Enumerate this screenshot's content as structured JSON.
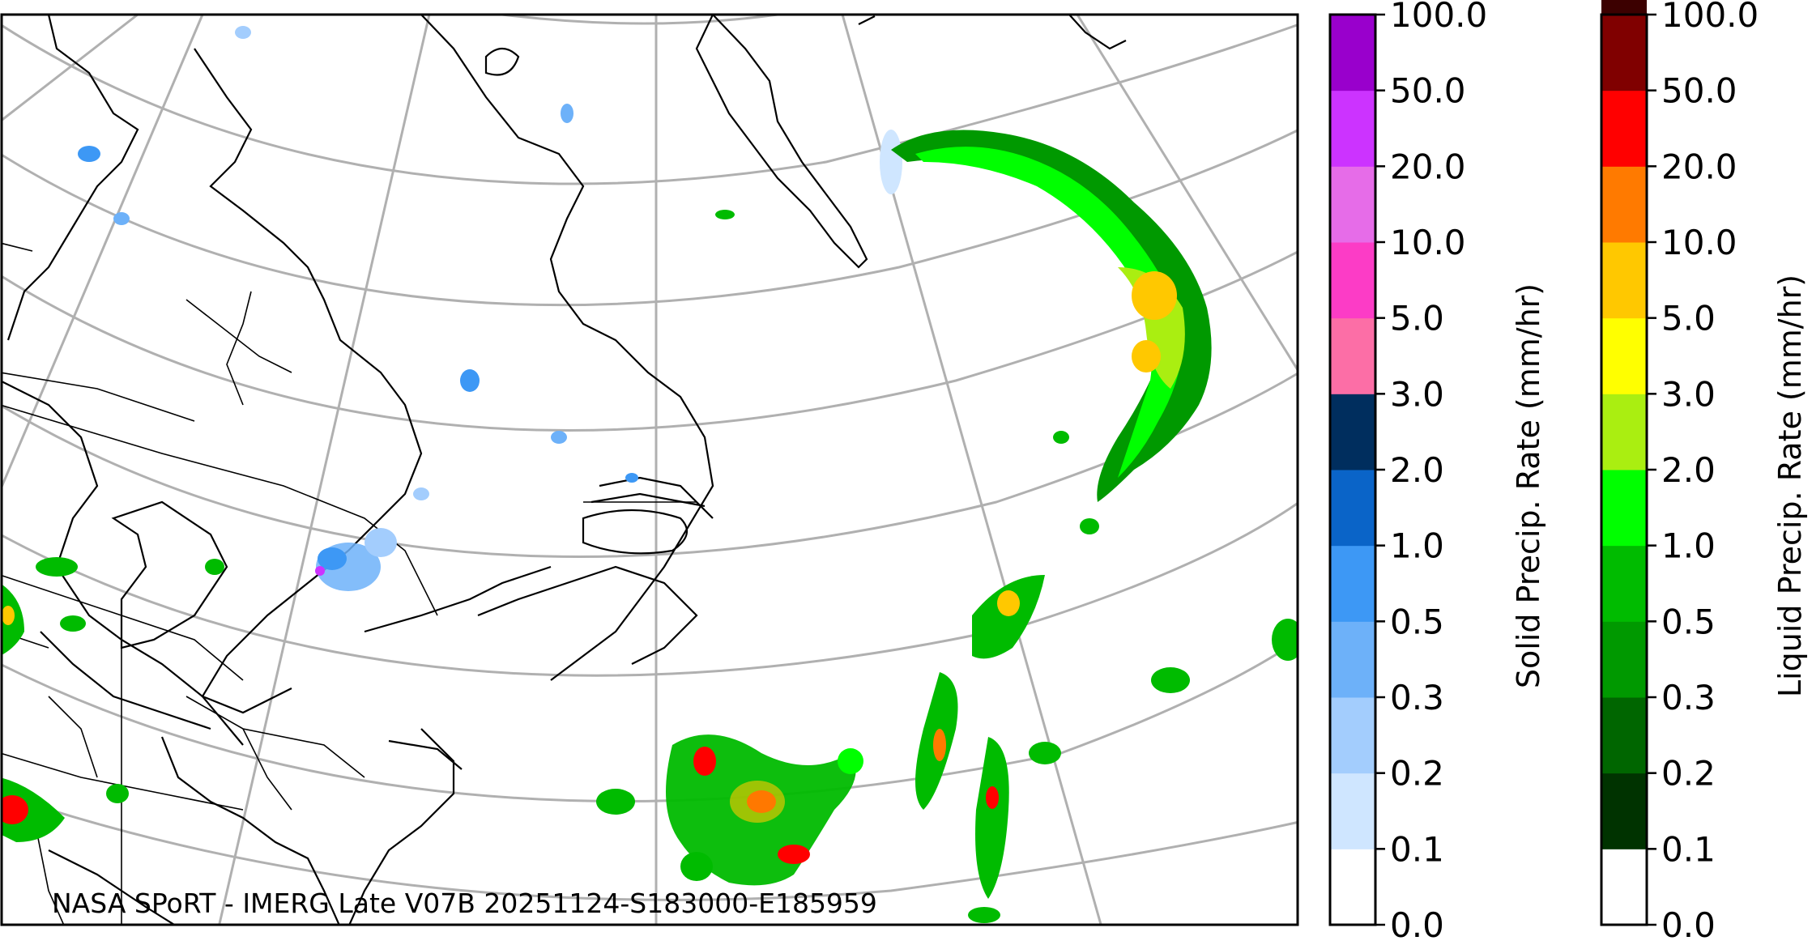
{
  "credit": "NASA SPoRT - IMERG Late V07B 20251124-S183000-E185959",
  "colorbars": [
    {
      "label": "Solid Precip. Rate (mm/hr)",
      "ticks": [
        "0.0",
        "0.1",
        "0.2",
        "0.3",
        "0.5",
        "1.0",
        "2.0",
        "3.0",
        "5.0",
        "10.0",
        "20.0",
        "50.0",
        "100.0"
      ],
      "colors": [
        "#ffffff",
        "#cfe6ff",
        "#a3cdfd",
        "#6db1f9",
        "#3d98f5",
        "#0a64c8",
        "#002e5e",
        "#fc6ea6",
        "#fc3cc6",
        "#e66ce8",
        "#cc33ff",
        "#9900cc"
      ]
    },
    {
      "label": "Liquid Precip. Rate (mm/hr)",
      "ticks": [
        "0.0",
        "0.1",
        "0.2",
        "0.3",
        "0.5",
        "1.0",
        "2.0",
        "3.0",
        "5.0",
        "10.0",
        "20.0",
        "50.0",
        "100.0"
      ],
      "colors": [
        "#ffffff",
        "#003300",
        "#006600",
        "#009900",
        "#00bb00",
        "#00ff00",
        "#aaee11",
        "#ffff00",
        "#ffc800",
        "#ff7a00",
        "#ff0000",
        "#800000",
        "#3c0000"
      ]
    }
  ],
  "colors": {
    "coastline": "#000000",
    "graticule": "#b0b0b0",
    "frame": "#000000"
  }
}
